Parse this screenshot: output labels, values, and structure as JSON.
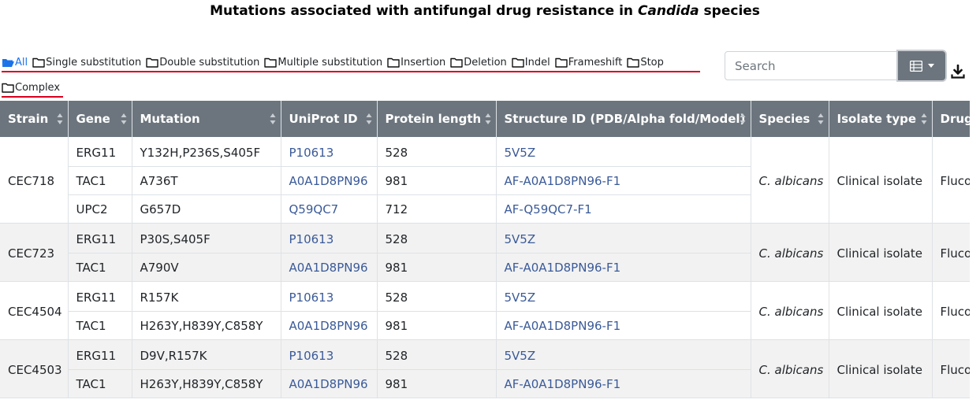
{
  "title": {
    "prefix": "Mutations associated with antifungal drug resistance in ",
    "italic": "Candida",
    "suffix": " species"
  },
  "filters": [
    {
      "label": "All",
      "active": true
    },
    {
      "label": "Single substitution",
      "active": false
    },
    {
      "label": "Double substitution",
      "active": false
    },
    {
      "label": "Multiple substitution",
      "active": false
    },
    {
      "label": "Insertion",
      "active": false
    },
    {
      "label": "Deletion",
      "active": false
    },
    {
      "label": "Indel",
      "active": false
    },
    {
      "label": "Frameshift",
      "active": false
    },
    {
      "label": "Stop",
      "active": false
    },
    {
      "label": "Complex",
      "active": false
    }
  ],
  "search": {
    "placeholder": "Search",
    "value": ""
  },
  "columns": [
    "Strain",
    "Gene",
    "Mutation",
    "UniProt ID",
    "Protein length",
    "Structure ID (PDB/Alpha fold/Model)",
    "Species",
    "Isolate type",
    "Drug"
  ],
  "groups": [
    {
      "strain": "CEC718",
      "species": "C. albicans",
      "isolate": "Clinical isolate",
      "drug": "Fluconazole",
      "rows": [
        {
          "gene": "ERG11",
          "mutation": "Y132H,P236S,S405F",
          "uniprot": "P10613",
          "length": "528",
          "structure": "5V5Z"
        },
        {
          "gene": "TAC1",
          "mutation": "A736T",
          "uniprot": "A0A1D8PN96",
          "length": "981",
          "structure": "AF-A0A1D8PN96-F1"
        },
        {
          "gene": "UPC2",
          "mutation": "G657D",
          "uniprot": "Q59QC7",
          "length": "712",
          "structure": "AF-Q59QC7-F1"
        }
      ]
    },
    {
      "strain": "CEC723",
      "species": "C. albicans",
      "isolate": "Clinical isolate",
      "drug": "Fluconazole",
      "rows": [
        {
          "gene": "ERG11",
          "mutation": "P30S,S405F",
          "uniprot": "P10613",
          "length": "528",
          "structure": "5V5Z"
        },
        {
          "gene": "TAC1",
          "mutation": "A790V",
          "uniprot": "A0A1D8PN96",
          "length": "981",
          "structure": "AF-A0A1D8PN96-F1"
        }
      ]
    },
    {
      "strain": "CEC4504",
      "species": "C. albicans",
      "isolate": "Clinical isolate",
      "drug": "Fluconazole",
      "rows": [
        {
          "gene": "ERG11",
          "mutation": "R157K",
          "uniprot": "P10613",
          "length": "528",
          "structure": "5V5Z"
        },
        {
          "gene": "TAC1",
          "mutation": "H263Y,H839Y,C858Y",
          "uniprot": "A0A1D8PN96",
          "length": "981",
          "structure": "AF-A0A1D8PN96-F1"
        }
      ]
    },
    {
      "strain": "CEC4503",
      "species": "C. albicans",
      "isolate": "Clinical isolate",
      "drug": "Fluconazole",
      "rows": [
        {
          "gene": "ERG11",
          "mutation": "D9V,R157K",
          "uniprot": "P10613",
          "length": "528",
          "structure": "5V5Z"
        },
        {
          "gene": "TAC1",
          "mutation": "H263Y,H839Y,C858Y",
          "uniprot": "A0A1D8PN96",
          "length": "981",
          "structure": "AF-A0A1D8PN96-F1"
        }
      ]
    }
  ]
}
